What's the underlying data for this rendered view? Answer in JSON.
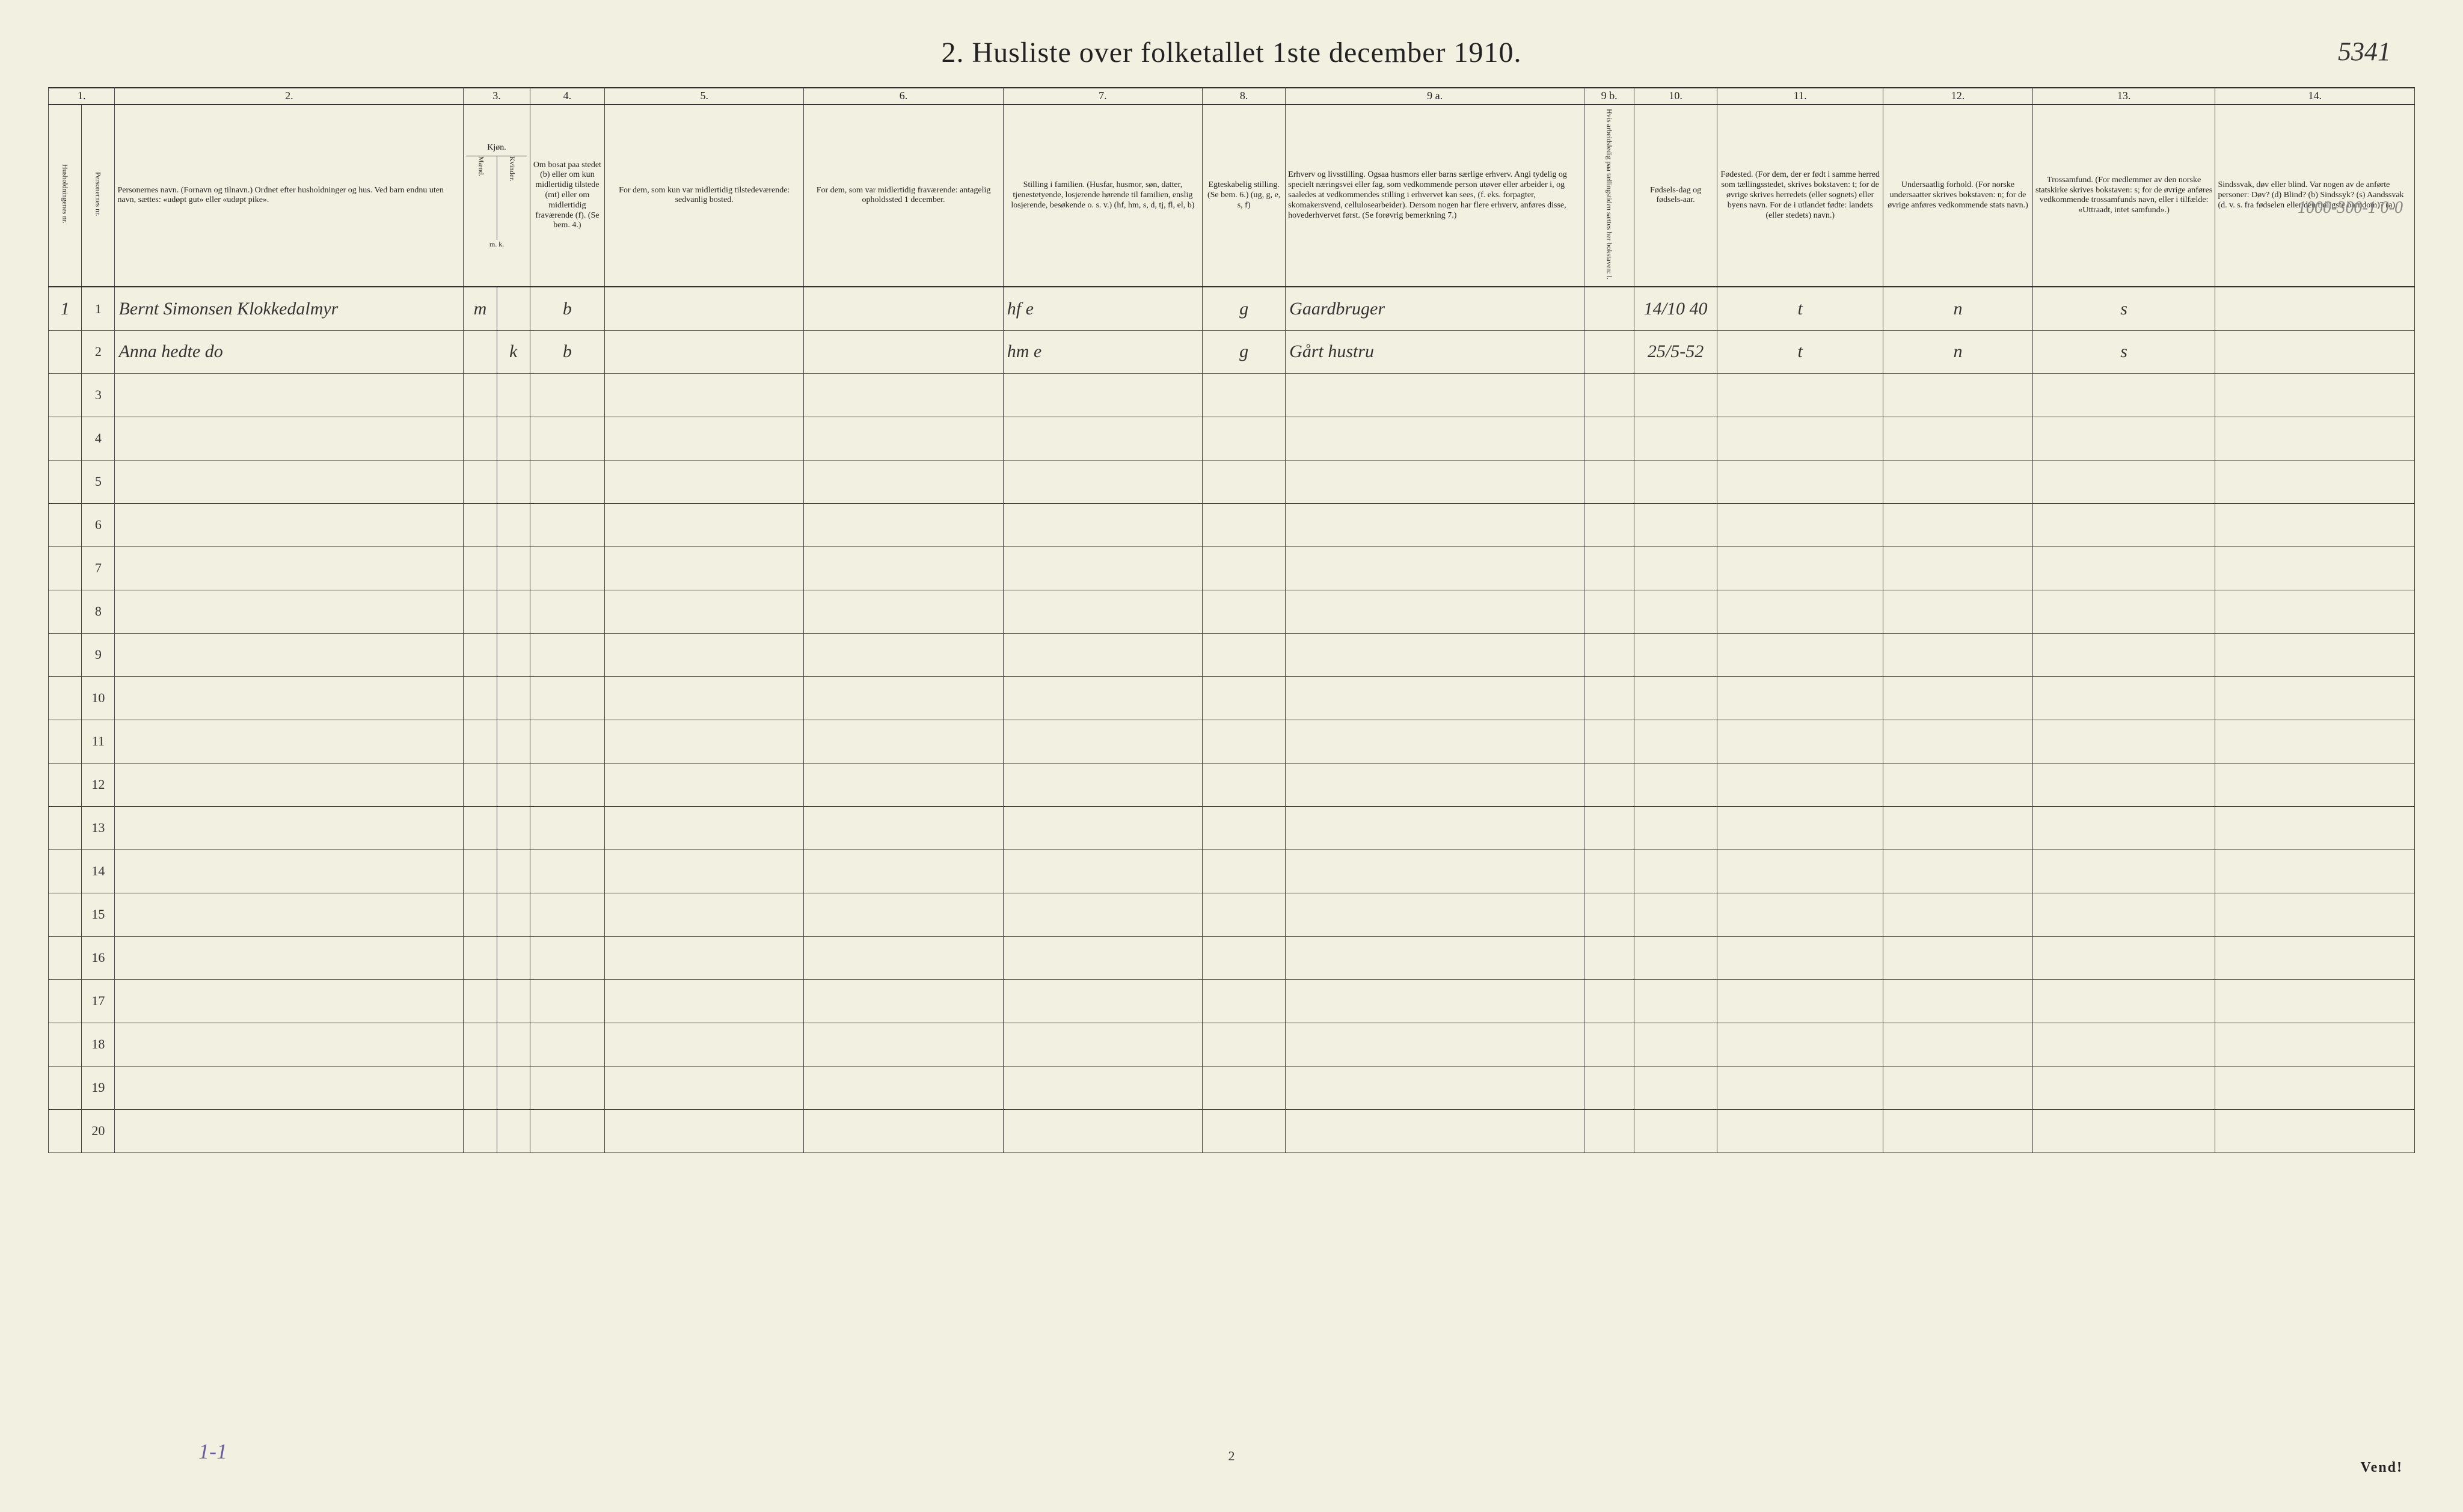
{
  "title": "2.  Husliste over folketallet 1ste december 1910.",
  "page_reference": "5341",
  "margin_note_right": "1000-300-1  0-0",
  "footer_annotation_left": "1-1",
  "footer_center_pagenum": "2",
  "footer_right": "Vend!",
  "colors": {
    "paper": "#f2f0e0",
    "ink": "#222222",
    "border": "#444444",
    "handwritten": "#333333",
    "pencil": "#888888",
    "purple_ink": "#6a5a9e"
  },
  "column_index": {
    "c1": "1.",
    "c2": "2.",
    "c3": "3.",
    "c4": "4.",
    "c5": "5.",
    "c6": "6.",
    "c7": "7.",
    "c8": "8.",
    "c9a": "9 a.",
    "c9b": "9 b.",
    "c10": "10.",
    "c11": "11.",
    "c12": "12.",
    "c13": "13.",
    "c14": "14."
  },
  "column_headers": {
    "c1": "Husholdningenes nr.",
    "c1b": "Personernes nr.",
    "c2": "Personernes navn.\n(Fornavn og tilnavn.)\nOrdnet efter husholdninger og hus.\nVed barn endnu uten navn, sættes: «udøpt gut» eller «udøpt pike».",
    "c3": "Kjøn.",
    "c3a": "Mænd.",
    "c3b": "Kvinder.",
    "c3_foot": "m.  k.",
    "c4": "Om bosat paa stedet (b) eller om kun midlertidig tilstede (mt) eller om midlertidig fraværende (f). (Se bem. 4.)",
    "c5": "For dem, som kun var midlertidig tilstedeværende:\nsedvanlig bosted.",
    "c6": "For dem, som var midlertidig fraværende:\nantagelig opholdssted 1 december.",
    "c7": "Stilling i familien.\n(Husfar, husmor, søn, datter, tjenestetyende, losjerende hørende til familien, enslig losjerende, besøkende o. s. v.)\n(hf, hm, s, d, tj, fl, el, b)",
    "c8": "Egteskabelig stilling.\n(Se bem. 6.)\n(ug, g, e, s, f)",
    "c9a": "Erhverv og livsstilling.\nOgsaa husmors eller barns særlige erhverv.\nAngi tydelig og specielt næringsvei eller fag, som vedkommende person utøver eller arbeider i, og saaledes at vedkommendes stilling i erhvervet kan sees, (f. eks. forpagter, skomakersvend, cellulosearbeider). Dersom nogen har flere erhverv, anføres disse, hovederhvervet først.\n(Se forøvrig bemerkning 7.)",
    "c9b": "Hvis arbeidsledig paa tællingstiden sættes her bokstaven: l.",
    "c10": "Fødsels-dag og fødsels-aar.",
    "c11": "Fødested.\n(For dem, der er født i samme herred som tællingsstedet, skrives bokstaven: t; for de øvrige skrives herredets (eller sognets) eller byens navn. For de i utlandet fødte: landets (eller stedets) navn.)",
    "c12": "Undersaatlig forhold.\n(For norske undersaatter skrives bokstaven: n; for de øvrige anføres vedkommende stats navn.)",
    "c13": "Trossamfund.\n(For medlemmer av den norske statskirke skrives bokstaven: s; for de øvrige anføres vedkommende trossamfunds navn, eller i tilfælde: «Uttraadt, intet samfund».)",
    "c14": "Sindssvak, døv eller blind.\nVar nogen av de anførte personer:\nDøv?  (d)\nBlind?  (b)\nSindssyk?  (s)\nAandssvak (d. v. s. fra fødselen eller den tidligste barndom)?  (a)"
  },
  "row_numbers": [
    "1",
    "2",
    "3",
    "4",
    "5",
    "6",
    "7",
    "8",
    "9",
    "10",
    "11",
    "12",
    "13",
    "14",
    "15",
    "16",
    "17",
    "18",
    "19",
    "20"
  ],
  "rows": [
    {
      "hh_num": "1",
      "p_num": "1",
      "name": "Bernt Simonsen   Klokkedalmyr",
      "kjon_m": "m",
      "kjon_k": "",
      "bosat": "b",
      "col5": "",
      "col6": "",
      "stilling_fam": "hf     e",
      "egteskab": "g",
      "erhverv": "Gaardbruger",
      "col9b": "",
      "fodselsdato": "14/10 40",
      "fodested": "t",
      "undersaat": "n",
      "tros": "s",
      "col14": ""
    },
    {
      "hh_num": "",
      "p_num": "2",
      "name": "Anna  hedte    do",
      "kjon_m": "",
      "kjon_k": "k",
      "bosat": "b",
      "col5": "",
      "col6": "",
      "stilling_fam": "hm     e",
      "egteskab": "g",
      "erhverv": "Gårt hustru",
      "col9b": "",
      "fodselsdato": "25/5-52",
      "fodested": "t",
      "undersaat": "n",
      "tros": "s",
      "col14": ""
    }
  ]
}
